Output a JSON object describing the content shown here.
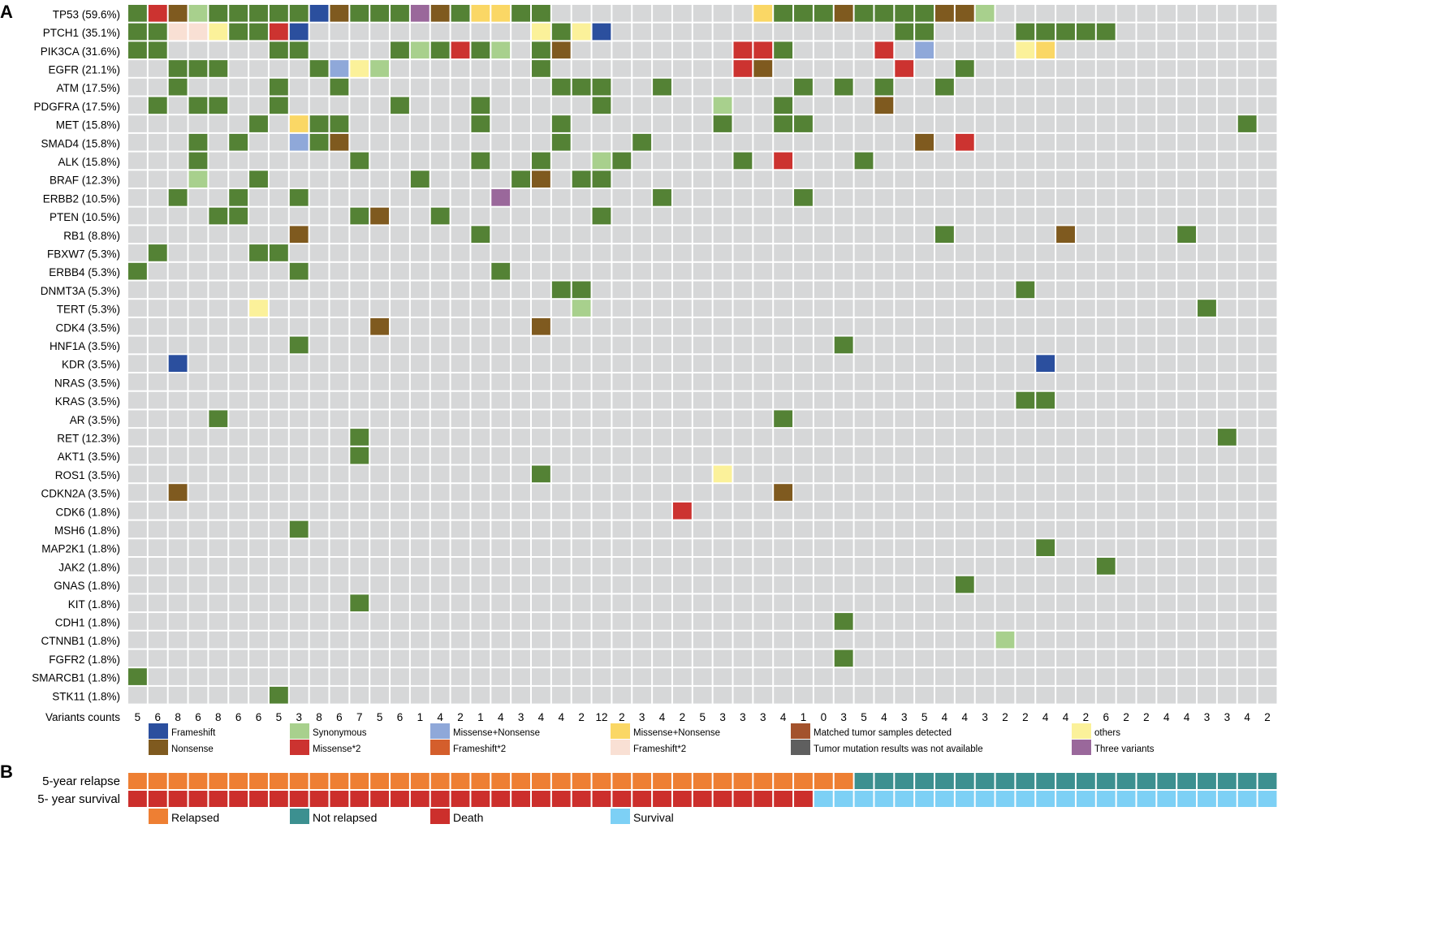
{
  "panels": {
    "a": "A",
    "b": "B"
  },
  "chart_data": [
    {
      "type": "heatmap",
      "title": "",
      "genes": [
        "TP53 (59.6%)",
        "PTCH1 (35.1%)",
        "PIK3CA (31.6%)",
        "EGFR (21.1%)",
        "ATM (17.5%)",
        "PDGFRA (17.5%)",
        "MET (15.8%)",
        "SMAD4 (15.8%)",
        "ALK (15.8%)",
        "BRAF (12.3%)",
        "ERBB2 (10.5%)",
        "PTEN (10.5%)",
        "RB1 (8.8%)",
        "FBXW7 (5.3%)",
        "ERBB4 (5.3%)",
        "DNMT3A (5.3%)",
        "TERT (5.3%)",
        "CDK4 (3.5%)",
        "HNF1A (3.5%)",
        "KDR (3.5%)",
        "NRAS (3.5%)",
        "KRAS (3.5%)",
        "AR (3.5%)",
        "RET (12.3%)",
        "AKT1 (3.5%)",
        "ROS1 (3.5%)",
        "CDKN2A (3.5%)",
        "CDK6 (1.8%)",
        "MSH6 (1.8%)",
        "MAP2K1 (1.8%)",
        "JAK2 (1.8%)",
        "GNAS (1.8%)",
        "KIT (1.8%)",
        "CDH1 (1.8%)",
        "CTNNB1 (1.8%)",
        "FGFR2 (1.8%)",
        "SMARCB1 (1.8%)",
        "STK11 (1.8%)"
      ],
      "n_samples": 57,
      "background_color": "#d6d7d8",
      "mutation_types": [
        {
          "code": "frameshift",
          "name": "Frameshift",
          "color": "#2b4f9e"
        },
        {
          "code": "nonsense",
          "name": "Nonsense",
          "color": "#7f5a1f"
        },
        {
          "code": "synonymous",
          "name": "Synonymous",
          "color": "#a8d08d"
        },
        {
          "code": "missense2",
          "name": "Missense*2",
          "color": "#cc3330"
        },
        {
          "code": "missense_nonsense_a",
          "name": "Missense+Nonsense",
          "color": "#8fa8d9"
        },
        {
          "code": "frameshift2_a",
          "name": "Frameshift*2",
          "color": "#d45e2c"
        },
        {
          "code": "missense_nonsense_b",
          "name": "Missense+Nonsense",
          "color": "#fad765"
        },
        {
          "code": "frameshift2_b",
          "name": "Frameshift*2",
          "color": "#f9e0d4"
        },
        {
          "code": "matched",
          "name": "Matched tumor samples detected",
          "color": "#a3522c"
        },
        {
          "code": "not_available",
          "name": "Tumor mutation results was not available",
          "color": "#5f5f5f"
        },
        {
          "code": "others",
          "name": "others",
          "color": "#fbf19a"
        },
        {
          "code": "three",
          "name": "Three variants",
          "color": "#9a689b"
        }
      ],
      "missense_color": "#548235",
      "cell_code_legend": {
        "M": "missense (#548235)",
        "F": "frameshift",
        "N": "nonsense",
        "S": "synonymous",
        "2": "missense2",
        "B": "missense_nonsense_a",
        "Y": "missense_nonsense_b",
        "P": "frameshift2_b",
        "O": "others",
        "V": "three",
        ".": "no mutation"
      },
      "matrix": [
        "M2NSMMMMMFNMMMVNMYYMM..........YMMMNMMMMNNS..............",
        "MMPPOMM2F...........OMOF..............MM....MMMMM........",
        "MM.....MM....MSM2MS.MN........22M....2.B....OY..........",
        "..MMM....MBOS.......M.........2N......2..M..............",
        "..M....M..M..........MMM..M......M.M.M..M...............",
        ".M.MM..M.....M...M.....M.....S..M....N..................",
        "......M.YMM......M...M.......M..MM.....................M",
        "...M.M..BMN..........M...M.............N.2...............",
        "...M.......M.....M..M..SM.....M.2...M..................",
        "...S..M.......M....MN.MM......................................",
        "..M..M..M.........V.......M......M.............................",
        "....MM.....MN..M.......M...................................",
        "........N........M......................M.....N.....M.....",
        ".M....MM...........................................",
        "M.......M.........M.............................................",
        ".....................MM.....................M...........",
        "......O...............S..............................M...",
        "............N.......N.......................................",
        "........M..........................M........................",
        "..F..........................................F..............",
        "...........................................................M.M",
        "............................................MM..............",
        "....M...........................M........................",
        "...........M..........................................M....",
        "...........M..............................................M.",
        "....................M........O......................",
        "..N.............................N......................",
        "...........................2.............................",
        "........M.................................................",
        ".............................................M...........",
        "................................................M........",
        ".........................................M.................",
        "...........M.............................................",
        "...................................M...................",
        "...........................................S..............",
        "...................................M...................",
        "M........................................................",
        ".......M..................................................."
      ],
      "variants_label": "Variants counts",
      "variant_counts": [
        5,
        6,
        8,
        6,
        8,
        6,
        6,
        5,
        3,
        8,
        6,
        7,
        5,
        6,
        1,
        4,
        2,
        1,
        4,
        3,
        4,
        4,
        2,
        12,
        2,
        3,
        4,
        2,
        5,
        3,
        3,
        3,
        4,
        1,
        0,
        3,
        5,
        4,
        3,
        5,
        4,
        4,
        3,
        2,
        2,
        4,
        4,
        2,
        6,
        2,
        2,
        4,
        4,
        3,
        3,
        4,
        2
      ],
      "legend_layout": [
        [
          "frameshift",
          "synonymous",
          "missense_nonsense_a",
          "missense_nonsense_b",
          "matched",
          "others"
        ],
        [
          "nonsense",
          "missense2",
          "frameshift2_a",
          "frameshift2_b",
          "not_available",
          "three"
        ]
      ]
    },
    {
      "type": "heatmap",
      "title": "",
      "rows": [
        {
          "label": "5-year relapse",
          "positive_count": 36,
          "positive": "Relapsed",
          "negative": "Not relapsed"
        },
        {
          "label": "5- year survival",
          "positive_count": 34,
          "positive": "Death",
          "negative": "Survival"
        }
      ],
      "n_samples": 57,
      "legend": [
        {
          "name": "Relapsed",
          "color": "#ee7f33"
        },
        {
          "name": "Not relapsed",
          "color": "#3c9090"
        },
        {
          "name": "Death",
          "color": "#cc2f2c"
        },
        {
          "name": "Survival",
          "color": "#7dd0f5"
        }
      ]
    }
  ]
}
